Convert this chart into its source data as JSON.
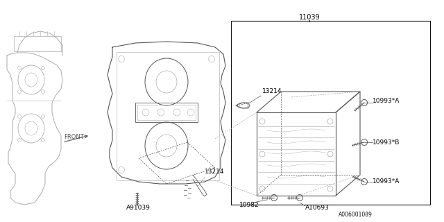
{
  "background_color": "#ffffff",
  "line_color": "#aaaaaa",
  "dark_line_color": "#555555",
  "black": "#111111",
  "figsize": [
    6.4,
    3.2
  ],
  "dpi": 100,
  "label_texts": {
    "11039": "11039",
    "13214_top": "13214",
    "13214_bot": "13214",
    "10993A_top": "10993*A",
    "10993B": "10993*B",
    "10993A_bot": "10993*A",
    "A91039": "A91039",
    "10982": "10982",
    "A10693": "A10693",
    "FRONT": "FRONT",
    "ref_code": "A006001089"
  }
}
